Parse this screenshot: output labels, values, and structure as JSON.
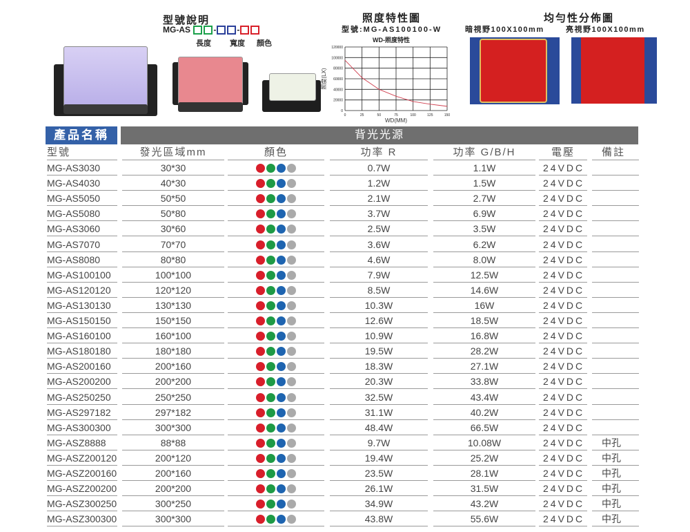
{
  "model_legend": {
    "title": "型號說明",
    "prefix": "MG-AS",
    "dash": "-",
    "labels": [
      "長度",
      "寬度",
      "顏色"
    ],
    "colors": [
      "#1aa04a",
      "#2a3f9a",
      "#d8202a"
    ]
  },
  "chart_data": {
    "type": "line",
    "title": "照度特性圖",
    "subtitle": "型號:MG-AS100100-W",
    "caption": "WD-照度特性",
    "xlabel": "WD(MM)",
    "ylabel": "照度(LX)",
    "xlim": [
      0,
      150
    ],
    "ylim": [
      0,
      120000
    ],
    "xticks": [
      0,
      25,
      50,
      75,
      100,
      125,
      150
    ],
    "yticks": [
      0,
      20000,
      40000,
      60000,
      80000,
      100000,
      120000
    ],
    "grid": true,
    "x": [
      0,
      25,
      50,
      75,
      100,
      125,
      150
    ],
    "y": [
      95000,
      62000,
      40000,
      27000,
      17000,
      12000,
      8000
    ],
    "color": "#d04050"
  },
  "uniformity": {
    "title": "均勻性分佈圖",
    "dark_label": "暗視野100X100mm",
    "bright_label": "亮視野100X100mm",
    "colors": {
      "blue": "#2a4a9a",
      "red": "#d42020",
      "edge": "#e0c060"
    }
  },
  "table": {
    "group_left": "產品名稱",
    "group_right": "背光光源",
    "headers": [
      "型號",
      "發光區域mm",
      "顏色",
      "功率 R",
      "功率 G/B/H",
      "電壓",
      "備註"
    ],
    "dot_colors": [
      "#d81e2a",
      "#1e9a46",
      "#1e64b0",
      "#aaaaaa"
    ],
    "rows": [
      [
        "MG-AS3030",
        "30*30",
        "0.7W",
        "1.1W",
        "24VDC",
        ""
      ],
      [
        "MG-AS4030",
        "40*30",
        "1.2W",
        "1.5W",
        "24VDC",
        ""
      ],
      [
        "MG-AS5050",
        "50*50",
        "2.1W",
        "2.7W",
        "24VDC",
        ""
      ],
      [
        "MG-AS5080",
        "50*80",
        "3.7W",
        "6.9W",
        "24VDC",
        ""
      ],
      [
        "MG-AS3060",
        "30*60",
        "2.5W",
        "3.5W",
        "24VDC",
        ""
      ],
      [
        "MG-AS7070",
        "70*70",
        "3.6W",
        "6.2W",
        "24VDC",
        ""
      ],
      [
        "MG-AS8080",
        "80*80",
        "4.6W",
        "8.0W",
        "24VDC",
        ""
      ],
      [
        "MG-AS100100",
        "100*100",
        "7.9W",
        "12.5W",
        "24VDC",
        ""
      ],
      [
        "MG-AS120120",
        "120*120",
        "8.5W",
        "14.6W",
        "24VDC",
        ""
      ],
      [
        "MG-AS130130",
        "130*130",
        "10.3W",
        "16W",
        "24VDC",
        ""
      ],
      [
        "MG-AS150150",
        "150*150",
        "12.6W",
        "18.5W",
        "24VDC",
        ""
      ],
      [
        "MG-AS160100",
        "160*100",
        "10.9W",
        "16.8W",
        "24VDC",
        ""
      ],
      [
        "MG-AS180180",
        "180*180",
        "19.5W",
        "28.2W",
        "24VDC",
        ""
      ],
      [
        "MG-AS200160",
        "200*160",
        "18.3W",
        "27.1W",
        "24VDC",
        ""
      ],
      [
        "MG-AS200200",
        "200*200",
        "20.3W",
        "33.8W",
        "24VDC",
        ""
      ],
      [
        "MG-AS250250",
        "250*250",
        "32.5W",
        "43.4W",
        "24VDC",
        ""
      ],
      [
        "MG-AS297182",
        "297*182",
        "31.1W",
        "40.2W",
        "24VDC",
        ""
      ],
      [
        "MG-AS300300",
        "300*300",
        "48.4W",
        "66.5W",
        "24VDC",
        ""
      ],
      [
        "MG-ASZ8888",
        "88*88",
        "9.7W",
        "10.08W",
        "24VDC",
        "中孔"
      ],
      [
        "MG-ASZ200120",
        "200*120",
        "19.4W",
        "25.2W",
        "24VDC",
        "中孔"
      ],
      [
        "MG-ASZ200160",
        "200*160",
        "23.5W",
        "28.1W",
        "24VDC",
        "中孔"
      ],
      [
        "MG-ASZ200200",
        "200*200",
        "26.1W",
        "31.5W",
        "24VDC",
        "中孔"
      ],
      [
        "MG-ASZ300250",
        "300*250",
        "34.9W",
        "43.2W",
        "24VDC",
        "中孔"
      ],
      [
        "MG-ASZ300300",
        "300*300",
        "43.8W",
        "55.6W",
        "24VDC",
        "中孔"
      ]
    ]
  }
}
